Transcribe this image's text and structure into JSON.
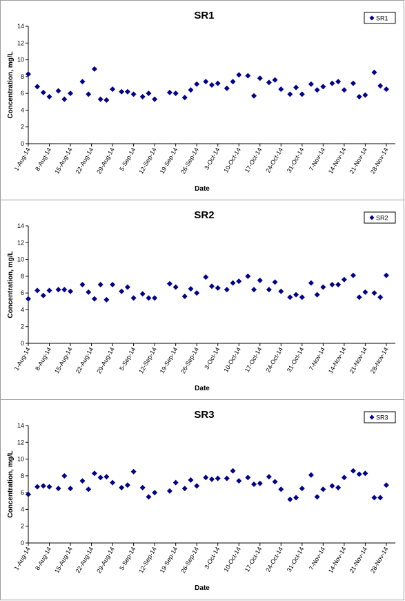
{
  "colors": {
    "marker": "#00008b",
    "axis": "#000000"
  },
  "chart_data": [
    {
      "type": "scatter",
      "title": "SR1",
      "xlabel": "Date",
      "ylabel": "Concentration, mg/L",
      "ylim": [
        0,
        14
      ],
      "yticks": [
        "0",
        "2",
        "4",
        "6",
        "8",
        "10",
        "12",
        "14"
      ],
      "xlim": [
        "2014-08-01",
        "2014-12-01"
      ],
      "xticks": [
        "1-Aug-14",
        "8-Aug-14",
        "15-Aug-14",
        "22-Aug-14",
        "29-Aug-14",
        "5-Sep-14",
        "12-Sep-14",
        "19-Sep-14",
        "26-Sep-14",
        "3-Oct-14",
        "10-Oct-14",
        "17-Oct-14",
        "24-Oct-14",
        "31-Oct-14",
        "7-Nov-14",
        "14-Nov-14",
        "21-Nov-14",
        "28-Nov-14"
      ],
      "grid": false,
      "legend_position": "top-right",
      "series": [
        {
          "name": "SR1",
          "x": [
            "2014-08-01",
            "2014-08-04",
            "2014-08-06",
            "2014-08-08",
            "2014-08-11",
            "2014-08-13",
            "2014-08-15",
            "2014-08-19",
            "2014-08-21",
            "2014-08-23",
            "2014-08-25",
            "2014-08-27",
            "2014-08-29",
            "2014-09-01",
            "2014-09-03",
            "2014-09-05",
            "2014-09-08",
            "2014-09-10",
            "2014-09-12",
            "2014-09-17",
            "2014-09-19",
            "2014-09-22",
            "2014-09-24",
            "2014-09-26",
            "2014-09-29",
            "2014-10-01",
            "2014-10-03",
            "2014-10-06",
            "2014-10-08",
            "2014-10-10",
            "2014-10-13",
            "2014-10-15",
            "2014-10-17",
            "2014-10-20",
            "2014-10-22",
            "2014-10-24",
            "2014-10-27",
            "2014-10-29",
            "2014-10-31",
            "2014-11-03",
            "2014-11-05",
            "2014-11-07",
            "2014-11-10",
            "2014-11-12",
            "2014-11-14",
            "2014-11-17",
            "2014-11-19",
            "2014-11-21",
            "2014-11-24",
            "2014-11-26",
            "2014-11-28"
          ],
          "y": [
            8.3,
            6.8,
            6.1,
            5.6,
            6.3,
            5.3,
            6.0,
            7.4,
            5.9,
            8.9,
            5.3,
            5.2,
            6.5,
            6.2,
            6.2,
            5.9,
            5.6,
            6.0,
            5.3,
            6.1,
            6.0,
            5.5,
            6.4,
            7.1,
            7.4,
            7.0,
            7.2,
            6.6,
            7.4,
            8.2,
            8.1,
            5.7,
            7.8,
            7.3,
            7.6,
            6.5,
            5.9,
            6.7,
            5.9,
            7.1,
            6.4,
            6.8,
            7.2,
            7.4,
            6.4,
            7.2,
            5.6,
            5.8,
            8.5,
            6.9,
            6.5
          ]
        }
      ]
    },
    {
      "type": "scatter",
      "title": "SR2",
      "xlabel": "Date",
      "ylabel": "Concentration, mg/L",
      "ylim": [
        0,
        14
      ],
      "yticks": [
        "0",
        "2",
        "4",
        "6",
        "8",
        "10",
        "12",
        "14"
      ],
      "xlim": [
        "2014-08-01",
        "2014-12-01"
      ],
      "xticks": [
        "1-Aug-14",
        "8-Aug-14",
        "15-Aug-14",
        "22-Aug-14",
        "29-Aug-14",
        "5-Sep-14",
        "12-Sep-14",
        "19-Sep-14",
        "26-Sep-14",
        "3-Oct-14",
        "10-Oct-14",
        "17-Oct-14",
        "24-Oct-14",
        "31-Oct-14",
        "7-Nov-14",
        "14-Nov-14",
        "21-Nov-14",
        "28-Nov-14"
      ],
      "grid": false,
      "legend_position": "top-right",
      "series": [
        {
          "name": "SR2",
          "x": [
            "2014-08-01",
            "2014-08-04",
            "2014-08-06",
            "2014-08-08",
            "2014-08-11",
            "2014-08-13",
            "2014-08-15",
            "2014-08-19",
            "2014-08-21",
            "2014-08-23",
            "2014-08-25",
            "2014-08-27",
            "2014-08-29",
            "2014-09-01",
            "2014-09-03",
            "2014-09-05",
            "2014-09-08",
            "2014-09-10",
            "2014-09-12",
            "2014-09-17",
            "2014-09-19",
            "2014-09-22",
            "2014-09-24",
            "2014-09-26",
            "2014-09-29",
            "2014-10-01",
            "2014-10-03",
            "2014-10-06",
            "2014-10-08",
            "2014-10-10",
            "2014-10-13",
            "2014-10-15",
            "2014-10-17",
            "2014-10-20",
            "2014-10-22",
            "2014-10-24",
            "2014-10-27",
            "2014-10-29",
            "2014-10-31",
            "2014-11-03",
            "2014-11-05",
            "2014-11-07",
            "2014-11-10",
            "2014-11-12",
            "2014-11-14",
            "2014-11-17",
            "2014-11-19",
            "2014-11-21",
            "2014-11-24",
            "2014-11-26",
            "2014-11-28"
          ],
          "y": [
            5.3,
            6.3,
            5.7,
            6.3,
            6.4,
            6.4,
            6.2,
            7.0,
            6.1,
            5.3,
            7.0,
            5.2,
            7.0,
            6.2,
            6.7,
            5.4,
            5.9,
            5.4,
            5.4,
            7.1,
            6.7,
            5.6,
            6.5,
            6.0,
            7.9,
            6.8,
            6.6,
            6.4,
            7.2,
            7.4,
            8.0,
            6.4,
            7.5,
            6.4,
            7.3,
            6.2,
            5.5,
            5.8,
            5.5,
            7.2,
            5.8,
            6.7,
            7.0,
            7.0,
            7.6,
            8.1,
            5.5,
            6.1,
            6.0,
            5.5,
            8.1
          ]
        }
      ]
    },
    {
      "type": "scatter",
      "title": "SR3",
      "xlabel": "Date",
      "ylabel": "Concentration, mg/L",
      "ylim": [
        0,
        14
      ],
      "yticks": [
        "0",
        "2",
        "4",
        "6",
        "8",
        "10",
        "12",
        "14"
      ],
      "xlim": [
        "2014-08-01",
        "2014-12-01"
      ],
      "xticks": [
        "1-Aug-14",
        "8-Aug-14",
        "15-Aug-14",
        "22-Aug-14",
        "29-Aug-14",
        "5-Sep-14",
        "12-Sep-14",
        "19-Sep-14",
        "26-Sep-14",
        "3-Oct-14",
        "10-Oct-14",
        "17-Oct-14",
        "24-Oct-14",
        "31-Oct-14",
        "7-Nov-14",
        "14-Nov-14",
        "21-Nov-14",
        "28-Nov-14"
      ],
      "grid": false,
      "legend_position": "top-right",
      "series": [
        {
          "name": "SR3",
          "x": [
            "2014-08-01",
            "2014-08-04",
            "2014-08-06",
            "2014-08-08",
            "2014-08-11",
            "2014-08-13",
            "2014-08-15",
            "2014-08-19",
            "2014-08-21",
            "2014-08-23",
            "2014-08-25",
            "2014-08-27",
            "2014-08-29",
            "2014-09-01",
            "2014-09-03",
            "2014-09-05",
            "2014-09-08",
            "2014-09-10",
            "2014-09-12",
            "2014-09-17",
            "2014-09-19",
            "2014-09-22",
            "2014-09-24",
            "2014-09-26",
            "2014-09-29",
            "2014-10-01",
            "2014-10-03",
            "2014-10-06",
            "2014-10-08",
            "2014-10-10",
            "2014-10-13",
            "2014-10-15",
            "2014-10-17",
            "2014-10-20",
            "2014-10-22",
            "2014-10-24",
            "2014-10-27",
            "2014-10-29",
            "2014-10-31",
            "2014-11-03",
            "2014-11-05",
            "2014-11-07",
            "2014-11-10",
            "2014-11-12",
            "2014-11-14",
            "2014-11-17",
            "2014-11-19",
            "2014-11-21",
            "2014-11-24",
            "2014-11-26",
            "2014-11-28"
          ],
          "y": [
            5.8,
            6.7,
            6.8,
            6.7,
            6.5,
            8.0,
            6.5,
            7.4,
            6.4,
            8.3,
            7.8,
            7.9,
            7.2,
            6.6,
            6.9,
            8.5,
            6.6,
            5.5,
            6.0,
            6.2,
            7.2,
            6.5,
            7.5,
            6.8,
            7.8,
            7.6,
            7.7,
            7.7,
            8.6,
            7.4,
            7.8,
            7.0,
            7.1,
            7.9,
            7.3,
            6.4,
            5.2,
            5.4,
            6.5,
            8.1,
            5.5,
            6.4,
            6.8,
            6.6,
            7.8,
            8.6,
            8.2,
            8.3,
            5.4,
            5.4,
            6.9
          ]
        }
      ]
    }
  ]
}
